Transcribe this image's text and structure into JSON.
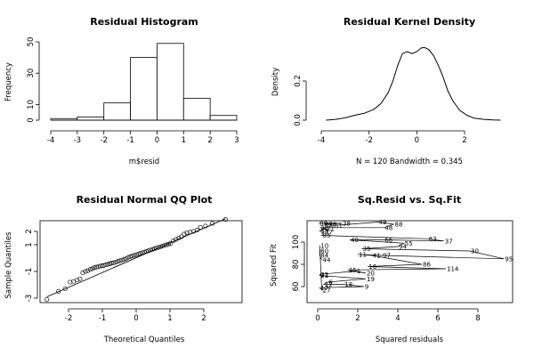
{
  "chart_data": [
    {
      "type": "bar",
      "title": "Residual Histogram",
      "xlabel": "m$resid",
      "ylabel": "Frequency",
      "bins": [
        [
          -4,
          -3
        ],
        [
          -3,
          -2
        ],
        [
          -2,
          -1
        ],
        [
          -1,
          0
        ],
        [
          0,
          1
        ],
        [
          1,
          2
        ],
        [
          2,
          3
        ]
      ],
      "values": [
        1,
        2,
        11,
        40,
        49,
        14,
        3
      ],
      "xlim": [
        -4,
        3
      ],
      "ylim": [
        0,
        50
      ],
      "x_ticks": [
        "-4",
        "-3",
        "-2",
        "-1",
        "0",
        "1",
        "2",
        "3"
      ],
      "y_ticks": [
        "0",
        "10",
        "30",
        "50"
      ],
      "grid": false
    },
    {
      "type": "line",
      "title": "Residual Kernel Density",
      "xlabel": "N = 120   Bandwidth = 0.345",
      "ylabel": "Density",
      "x": [
        -3.8,
        -3.4,
        -3.0,
        -2.6,
        -2.2,
        -1.8,
        -1.5,
        -1.2,
        -1.0,
        -0.8,
        -0.6,
        -0.4,
        -0.2,
        0.0,
        0.2,
        0.35,
        0.5,
        0.7,
        0.9,
        1.1,
        1.3,
        1.5,
        1.8,
        2.1,
        2.4,
        2.8,
        3.2,
        3.5
      ],
      "y": [
        0.0,
        0.004,
        0.012,
        0.025,
        0.035,
        0.055,
        0.085,
        0.14,
        0.2,
        0.28,
        0.34,
        0.35,
        0.34,
        0.35,
        0.37,
        0.37,
        0.36,
        0.33,
        0.28,
        0.22,
        0.15,
        0.1,
        0.05,
        0.025,
        0.01,
        0.004,
        0.001,
        0.0
      ],
      "xlim": [
        -4.2,
        3.7
      ],
      "ylim": [
        0,
        0.38
      ],
      "x_ticks": [
        "-4",
        "-2",
        "0",
        "2"
      ],
      "y_ticks": [
        "0.0",
        "0.2"
      ],
      "grid": false
    },
    {
      "type": "scatter",
      "title": "Residual Normal QQ Plot",
      "xlabel": "Theoretical Quantiles",
      "ylabel": "Sample Quantiles",
      "x": [
        -2.64,
        -2.3,
        -2.1,
        -1.95,
        -1.85,
        -1.75,
        -1.66,
        -1.58,
        -1.5,
        -1.43,
        -1.36,
        -1.3,
        -1.24,
        -1.18,
        -1.12,
        -1.06,
        -1.0,
        -0.95,
        -0.9,
        -0.84,
        -0.78,
        -0.72,
        -0.66,
        -0.6,
        -0.54,
        -0.48,
        -0.42,
        -0.36,
        -0.3,
        -0.24,
        -0.18,
        -0.12,
        -0.06,
        0.0,
        0.06,
        0.12,
        0.18,
        0.24,
        0.3,
        0.36,
        0.42,
        0.48,
        0.54,
        0.6,
        0.66,
        0.72,
        0.78,
        0.84,
        0.9,
        0.96,
        1.02,
        1.1,
        1.18,
        1.26,
        1.34,
        1.42,
        1.5,
        1.6,
        1.7,
        1.8,
        1.9,
        2.05,
        2.25,
        2.64
      ],
      "y": [
        -3.1,
        -2.5,
        -2.3,
        -1.8,
        -1.75,
        -1.65,
        -1.55,
        -1.1,
        -1.0,
        -0.95,
        -0.85,
        -0.8,
        -0.72,
        -0.68,
        -0.65,
        -0.6,
        -0.58,
        -0.55,
        -0.5,
        -0.47,
        -0.42,
        -0.38,
        -0.35,
        -0.3,
        -0.25,
        -0.2,
        -0.15,
        -0.1,
        -0.05,
        0.05,
        0.1,
        0.15,
        0.2,
        0.25,
        0.3,
        0.35,
        0.4,
        0.45,
        0.5,
        0.55,
        0.6,
        0.65,
        0.7,
        0.75,
        0.8,
        0.85,
        0.9,
        0.95,
        1.0,
        1.05,
        1.1,
        1.3,
        1.4,
        1.5,
        1.6,
        1.8,
        1.9,
        1.95,
        2.0,
        2.1,
        2.3,
        2.4,
        2.6,
        2.9
      ],
      "qq_line": {
        "x": [
          -2.64,
          2.64
        ],
        "y": [
          -2.9,
          2.95
        ]
      },
      "xlim": [
        -2.8,
        2.8
      ],
      "ylim": [
        -3.3,
        3.2
      ],
      "x_ticks": [
        "-2",
        "-1",
        "0",
        "1",
        "2"
      ],
      "y_ticks": [
        "-3",
        "-1",
        "1",
        "2"
      ],
      "grid": false
    },
    {
      "type": "scatter",
      "title": "Sq.Resid vs. Sq.Fit",
      "xlabel": "Squared residuals",
      "ylabel": "Squared Fit",
      "points": [
        {
          "x": 0.05,
          "y": 117,
          "label": "89"
        },
        {
          "x": 1.2,
          "y": 117,
          "label": "38"
        },
        {
          "x": 0.3,
          "y": 116,
          "label": "83"
        },
        {
          "x": 0.5,
          "y": 116,
          "label": "78"
        },
        {
          "x": 0.8,
          "y": 115,
          "label": "51"
        },
        {
          "x": 3.0,
          "y": 118,
          "label": "49"
        },
        {
          "x": 3.8,
          "y": 116,
          "label": "88"
        },
        {
          "x": 3.3,
          "y": 113,
          "label": "48"
        },
        {
          "x": 0.1,
          "y": 113,
          "label": "36"
        },
        {
          "x": 0.4,
          "y": 112,
          "label": "71"
        },
        {
          "x": 0.1,
          "y": 110,
          "label": "58"
        },
        {
          "x": 0.3,
          "y": 109,
          "label": "77"
        },
        {
          "x": 0.2,
          "y": 106,
          "label": "85"
        },
        {
          "x": 5.5,
          "y": 103,
          "label": "63"
        },
        {
          "x": 6.3,
          "y": 101,
          "label": "37"
        },
        {
          "x": 3.3,
          "y": 102,
          "label": "66"
        },
        {
          "x": 1.6,
          "y": 102,
          "label": "40"
        },
        {
          "x": 4.3,
          "y": 99,
          "label": "55"
        },
        {
          "x": 4.0,
          "y": 96,
          "label": "94"
        },
        {
          "x": 2.2,
          "y": 94,
          "label": "35"
        },
        {
          "x": 7.6,
          "y": 92,
          "label": "30"
        },
        {
          "x": 9.3,
          "y": 85,
          "label": "95"
        },
        {
          "x": 3.2,
          "y": 88,
          "label": "97"
        },
        {
          "x": 2.0,
          "y": 89,
          "label": "11"
        },
        {
          "x": 2.7,
          "y": 88,
          "label": "41"
        },
        {
          "x": 5.2,
          "y": 80,
          "label": "86"
        },
        {
          "x": 2.5,
          "y": 78,
          "label": "16"
        },
        {
          "x": 6.4,
          "y": 76,
          "label": "114"
        },
        {
          "x": 1.5,
          "y": 75,
          "label": "25"
        },
        {
          "x": 2.4,
          "y": 72,
          "label": "20"
        },
        {
          "x": 1.9,
          "y": 74,
          "label": "1"
        },
        {
          "x": 0.1,
          "y": 71,
          "label": "22"
        },
        {
          "x": 0.1,
          "y": 70,
          "label": "21"
        },
        {
          "x": 2.4,
          "y": 67,
          "label": "19"
        },
        {
          "x": 0.5,
          "y": 64,
          "label": "6"
        },
        {
          "x": 0.3,
          "y": 62,
          "label": "12"
        },
        {
          "x": 1.3,
          "y": 62,
          "label": "18"
        },
        {
          "x": 2.3,
          "y": 60,
          "label": "9"
        },
        {
          "x": 0.1,
          "y": 59,
          "label": "17"
        },
        {
          "x": 0.2,
          "y": 57,
          "label": "27"
        },
        {
          "x": 0.1,
          "y": 97,
          "label": "10"
        },
        {
          "x": 0.1,
          "y": 92,
          "label": "60"
        },
        {
          "x": 0.1,
          "y": 88,
          "label": "84"
        },
        {
          "x": 0.2,
          "y": 84,
          "label": "44"
        }
      ],
      "xlim": [
        -0.3,
        9.7
      ],
      "ylim": [
        52,
        122
      ],
      "x_ticks": [
        "0",
        "2",
        "4",
        "6",
        "8"
      ],
      "y_ticks": [
        "60",
        "80",
        "100"
      ],
      "grid": false
    }
  ]
}
